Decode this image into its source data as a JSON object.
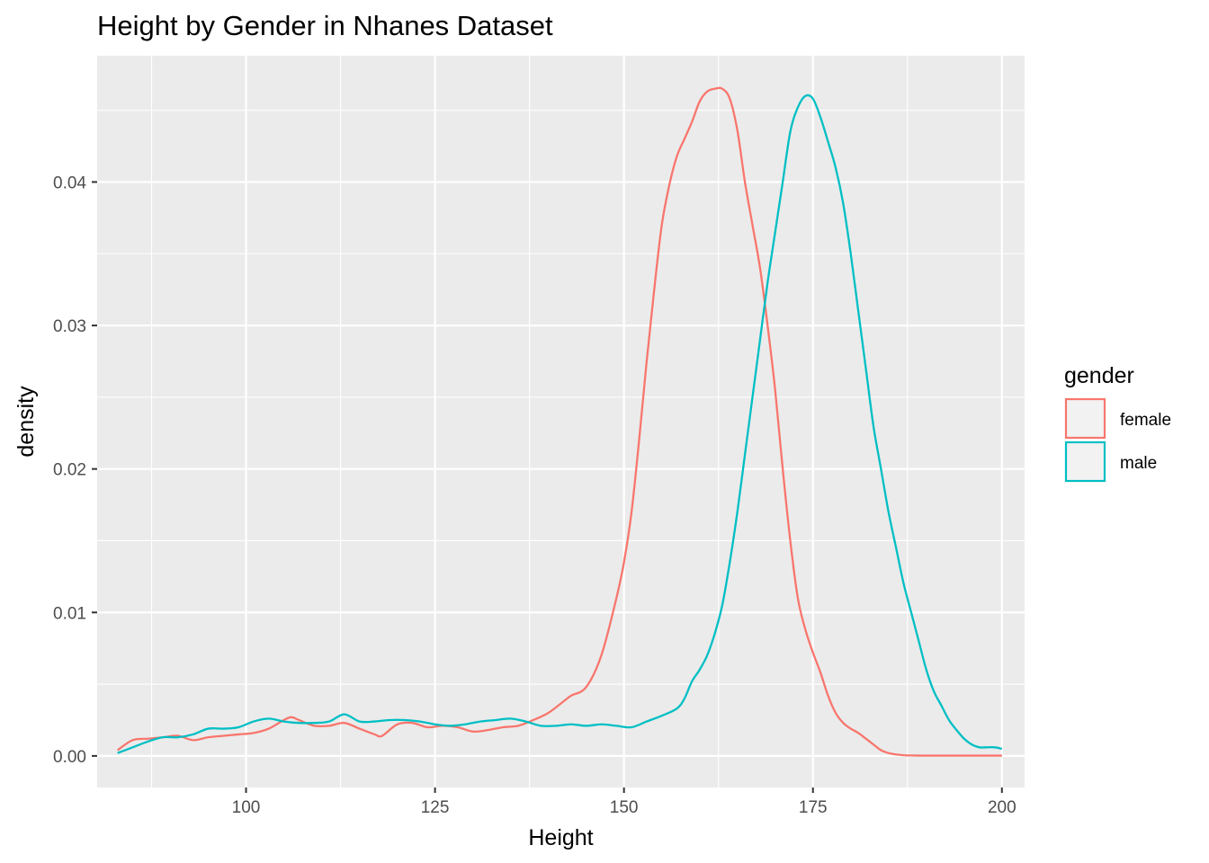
{
  "chart_data": {
    "type": "line",
    "title": "Height by Gender in Nhanes Dataset",
    "xlabel": "Height",
    "ylabel": "density",
    "xlim": [
      80.3,
      203.0
    ],
    "ylim": [
      -0.0022,
      0.0488
    ],
    "x_ticks": [
      100,
      125,
      150,
      175,
      200
    ],
    "y_ticks": [
      0.0,
      0.01,
      0.02,
      0.03,
      0.04
    ],
    "x_tick_labels": [
      "100",
      "125",
      "150",
      "175",
      "200"
    ],
    "y_tick_labels": [
      "0.00",
      "0.01",
      "0.02",
      "0.03",
      "0.04"
    ],
    "grid": true,
    "legend": {
      "title": "gender",
      "position": "right"
    },
    "series": [
      {
        "name": "female",
        "color": "#F8766D",
        "x": [
          83,
          85,
          87,
          89,
          91,
          93,
          95,
          97,
          99,
          101,
          103,
          105,
          106,
          107,
          109,
          111,
          113,
          115,
          117,
          118,
          120,
          122,
          124,
          126,
          128,
          130,
          132,
          134,
          136,
          138,
          140,
          142,
          143,
          145,
          147,
          149,
          150,
          151,
          152,
          153,
          154,
          155,
          156,
          157,
          158,
          159,
          160,
          161,
          162,
          163,
          164,
          165,
          166,
          167,
          168,
          169,
          170,
          171,
          172,
          173,
          174,
          175,
          176,
          177,
          178,
          179,
          180,
          181,
          182,
          183,
          184,
          185,
          186,
          187,
          188,
          190,
          195,
          200
        ],
        "values": [
          0.0004,
          0.0011,
          0.0012,
          0.0013,
          0.0014,
          0.0011,
          0.0013,
          0.0014,
          0.0015,
          0.0016,
          0.0019,
          0.0025,
          0.0027,
          0.0025,
          0.0021,
          0.0021,
          0.0023,
          0.0019,
          0.0015,
          0.0014,
          0.0022,
          0.0023,
          0.002,
          0.0021,
          0.002,
          0.0017,
          0.0018,
          0.002,
          0.0021,
          0.0025,
          0.003,
          0.0038,
          0.0042,
          0.0048,
          0.007,
          0.011,
          0.0135,
          0.017,
          0.022,
          0.0275,
          0.0325,
          0.037,
          0.0398,
          0.0418,
          0.043,
          0.0442,
          0.0456,
          0.0463,
          0.0465,
          0.0465,
          0.0458,
          0.0436,
          0.04,
          0.037,
          0.034,
          0.03,
          0.0255,
          0.02,
          0.015,
          0.011,
          0.0088,
          0.0072,
          0.0058,
          0.0042,
          0.003,
          0.0023,
          0.0019,
          0.0016,
          0.0012,
          0.0008,
          0.0004,
          0.0002,
          0.0001,
          5e-05,
          3e-05,
          2e-05,
          2e-05,
          2e-05
        ]
      },
      {
        "name": "male",
        "color": "#00BFC4",
        "x": [
          83,
          85,
          87,
          89,
          91,
          93,
          95,
          97,
          99,
          101,
          103,
          105,
          107,
          109,
          111,
          113,
          115,
          117,
          119,
          121,
          123,
          125,
          127,
          129,
          131,
          133,
          135,
          137,
          139,
          141,
          143,
          145,
          147,
          149,
          151,
          153,
          155,
          157,
          158,
          159,
          160,
          161,
          162,
          163,
          164,
          165,
          166,
          167,
          168,
          169,
          170,
          171,
          172,
          173,
          174,
          175,
          176,
          177,
          178,
          179,
          180,
          181,
          182,
          183,
          184,
          185,
          186,
          187,
          188,
          189,
          190,
          191,
          192,
          193,
          194,
          195,
          196,
          197,
          198,
          199,
          200
        ],
        "values": [
          0.0002,
          0.0006,
          0.001,
          0.0013,
          0.0013,
          0.0015,
          0.0019,
          0.0019,
          0.002,
          0.0024,
          0.0026,
          0.0024,
          0.0023,
          0.0023,
          0.0024,
          0.0029,
          0.0024,
          0.0024,
          0.0025,
          0.0025,
          0.0024,
          0.0022,
          0.0021,
          0.0022,
          0.0024,
          0.0025,
          0.0026,
          0.0024,
          0.0021,
          0.0021,
          0.0022,
          0.0021,
          0.0022,
          0.0021,
          0.002,
          0.0024,
          0.0028,
          0.0033,
          0.004,
          0.0052,
          0.006,
          0.007,
          0.0085,
          0.0105,
          0.0135,
          0.017,
          0.021,
          0.025,
          0.029,
          0.033,
          0.0365,
          0.04,
          0.0435,
          0.0452,
          0.046,
          0.0458,
          0.0445,
          0.0428,
          0.041,
          0.0385,
          0.035,
          0.031,
          0.027,
          0.023,
          0.02,
          0.017,
          0.0145,
          0.012,
          0.01,
          0.008,
          0.006,
          0.0045,
          0.0035,
          0.0025,
          0.0018,
          0.0012,
          0.0008,
          0.0006,
          0.0006,
          0.0006,
          0.0005
        ]
      }
    ]
  }
}
